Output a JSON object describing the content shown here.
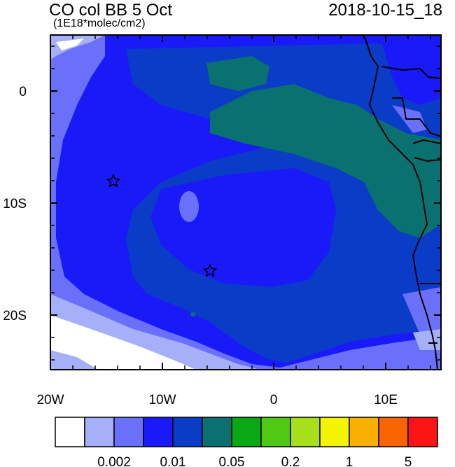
{
  "header": {
    "title": "CO col BB 5 Oct",
    "subtitle": "(1E18*molec/cm2)",
    "timestamp": "2018-10-15_18"
  },
  "axes": {
    "lon_labels": [
      "20W",
      "10W",
      "0",
      "10E"
    ],
    "lat_labels": [
      "0",
      "10S",
      "20S"
    ],
    "lon_range": [
      -20,
      15
    ],
    "lat_range": [
      -25,
      5
    ]
  },
  "markers": [
    {
      "name": "star",
      "lon": -14.3,
      "lat": -8.0
    },
    {
      "name": "star",
      "lon": -5.7,
      "lat": -16.0
    }
  ],
  "colorbar": {
    "colors": [
      "#ffffff",
      "#a6b0f8",
      "#6a70fa",
      "#1a1af8",
      "#0a3cc8",
      "#0a7070",
      "#0aa814",
      "#50c814",
      "#a8e01c",
      "#f4f400",
      "#fab000",
      "#fa6400",
      "#fa1414"
    ],
    "tick_labels": [
      "0.002",
      "0.01",
      "0.05",
      "0.2",
      "1",
      "5"
    ]
  }
}
